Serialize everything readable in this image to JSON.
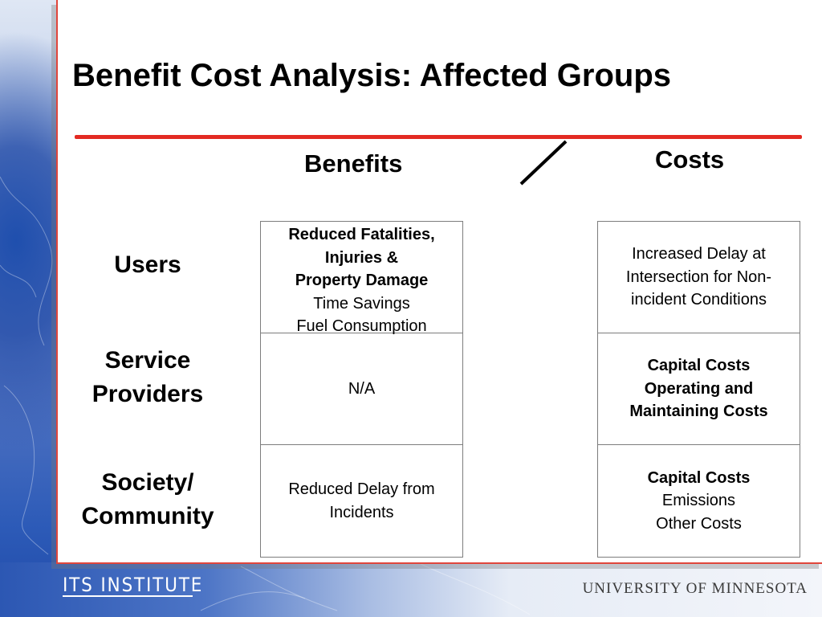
{
  "slide": {
    "title": "Benefit Cost Analysis: Affected Groups",
    "benefits_header": "Benefits",
    "costs_header": "Costs"
  },
  "rows": [
    {
      "label_line1": "Users",
      "label_line2": ""
    },
    {
      "label_line1": "Service",
      "label_line2": "Providers"
    },
    {
      "label_line1": "Society/",
      "label_line2": "Community"
    }
  ],
  "benefits": [
    {
      "bold_lines": [
        "Reduced Fatalities,",
        "Injuries &",
        "Property Damage"
      ],
      "lines": [
        "Time Savings",
        "Fuel Consumption"
      ]
    },
    {
      "bold_lines": [],
      "lines": [
        "N/A"
      ]
    },
    {
      "bold_lines": [],
      "lines": [
        "Reduced Delay from",
        "Incidents"
      ]
    }
  ],
  "costs": [
    {
      "bold_lines": [],
      "lines": [
        "Increased Delay at",
        "Intersection for Non-",
        "incident Conditions"
      ]
    },
    {
      "bold_lines": [
        "Capital Costs",
        "Operating and",
        "Maintaining Costs"
      ],
      "lines": []
    },
    {
      "bold_lines": [
        "Capital Costs"
      ],
      "lines": [
        "Emissions",
        "Other Costs"
      ]
    }
  ],
  "footer": {
    "its_logo_text": "ITS INSTITUTE",
    "umn_logo_text": "UNIVERSITY OF MINNESOTA"
  },
  "colors": {
    "accent_red": "#e32a22",
    "background_blue": "#2d5bb8"
  }
}
